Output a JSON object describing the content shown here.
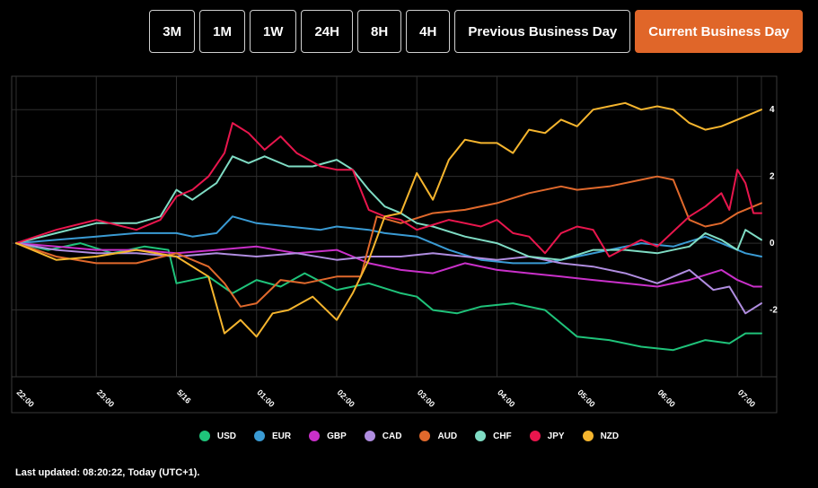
{
  "range_buttons": [
    {
      "label": "3M",
      "active": false
    },
    {
      "label": "1M",
      "active": false
    },
    {
      "label": "1W",
      "active": false
    },
    {
      "label": "24H",
      "active": false
    },
    {
      "label": "8H",
      "active": false
    },
    {
      "label": "4H",
      "active": false
    },
    {
      "label": "Previous Business Day",
      "active": false
    },
    {
      "label": "Current Business Day",
      "active": true
    }
  ],
  "colors": {
    "accent": "#e06629",
    "USD": "#1fc37a",
    "EUR": "#3a9bd4",
    "GBP": "#c930c9",
    "CAD": "#b08de0",
    "AUD": "#e0692c",
    "CHF": "#7fdcc4",
    "JPY": "#e8164d",
    "NZD": "#f5b52e"
  },
  "footer": {
    "last_updated": "Last updated: 08:20:22, Today (UTC+1)."
  },
  "chart_data": {
    "type": "line",
    "title": "",
    "xlabel": "",
    "ylabel": "",
    "ylim": [
      -4,
      5
    ],
    "yticks": [
      -2,
      0,
      2,
      4
    ],
    "ytick_labels": [
      "-2",
      "0",
      "2",
      "4"
    ],
    "xlim": [
      0,
      93
    ],
    "x_ticks": [
      {
        "x": 0,
        "label": "22:00"
      },
      {
        "x": 10,
        "label": "23:00"
      },
      {
        "x": 20,
        "label": "5/16"
      },
      {
        "x": 30,
        "label": "01:00"
      },
      {
        "x": 40,
        "label": "02:00"
      },
      {
        "x": 50,
        "label": "03:00"
      },
      {
        "x": 60,
        "label": "04:00"
      },
      {
        "x": 70,
        "label": "05:00"
      },
      {
        "x": 80,
        "label": "06:00"
      },
      {
        "x": 90,
        "label": "07:00"
      }
    ],
    "x_interval_minutes": 6,
    "legend": [
      "USD",
      "EUR",
      "GBP",
      "CAD",
      "AUD",
      "CHF",
      "JPY",
      "NZD"
    ],
    "series": [
      {
        "name": "USD",
        "points": [
          [
            0,
            0
          ],
          [
            4,
            -0.2
          ],
          [
            8,
            0
          ],
          [
            12,
            -0.3
          ],
          [
            16,
            -0.1
          ],
          [
            19,
            -0.2
          ],
          [
            20,
            -1.2
          ],
          [
            24,
            -1.0
          ],
          [
            27,
            -1.5
          ],
          [
            30,
            -1.1
          ],
          [
            33,
            -1.3
          ],
          [
            36,
            -0.9
          ],
          [
            40,
            -1.4
          ],
          [
            44,
            -1.2
          ],
          [
            48,
            -1.5
          ],
          [
            50,
            -1.6
          ],
          [
            52,
            -2.0
          ],
          [
            55,
            -2.1
          ],
          [
            58,
            -1.9
          ],
          [
            62,
            -1.8
          ],
          [
            66,
            -2.0
          ],
          [
            70,
            -2.8
          ],
          [
            74,
            -2.9
          ],
          [
            78,
            -3.1
          ],
          [
            82,
            -3.2
          ],
          [
            86,
            -2.9
          ],
          [
            89,
            -3.0
          ],
          [
            91,
            -2.7
          ],
          [
            93,
            -2.7
          ]
        ]
      },
      {
        "name": "EUR",
        "points": [
          [
            0,
            0
          ],
          [
            5,
            0.1
          ],
          [
            10,
            0.2
          ],
          [
            15,
            0.3
          ],
          [
            20,
            0.3
          ],
          [
            22,
            0.2
          ],
          [
            25,
            0.3
          ],
          [
            27,
            0.8
          ],
          [
            30,
            0.6
          ],
          [
            34,
            0.5
          ],
          [
            38,
            0.4
          ],
          [
            40,
            0.5
          ],
          [
            44,
            0.4
          ],
          [
            46,
            0.3
          ],
          [
            50,
            0.2
          ],
          [
            54,
            -0.2
          ],
          [
            58,
            -0.5
          ],
          [
            62,
            -0.6
          ],
          [
            66,
            -0.6
          ],
          [
            70,
            -0.4
          ],
          [
            74,
            -0.2
          ],
          [
            78,
            0
          ],
          [
            82,
            -0.1
          ],
          [
            86,
            0.2
          ],
          [
            89,
            -0.1
          ],
          [
            91,
            -0.3
          ],
          [
            93,
            -0.4
          ]
        ]
      },
      {
        "name": "GBP",
        "points": [
          [
            0,
            0
          ],
          [
            5,
            -0.1
          ],
          [
            10,
            -0.2
          ],
          [
            15,
            -0.2
          ],
          [
            20,
            -0.3
          ],
          [
            25,
            -0.2
          ],
          [
            30,
            -0.1
          ],
          [
            35,
            -0.3
          ],
          [
            40,
            -0.2
          ],
          [
            44,
            -0.6
          ],
          [
            48,
            -0.8
          ],
          [
            52,
            -0.9
          ],
          [
            56,
            -0.6
          ],
          [
            60,
            -0.8
          ],
          [
            64,
            -0.9
          ],
          [
            68,
            -1.0
          ],
          [
            72,
            -1.1
          ],
          [
            76,
            -1.2
          ],
          [
            80,
            -1.3
          ],
          [
            84,
            -1.1
          ],
          [
            88,
            -0.8
          ],
          [
            90,
            -1.1
          ],
          [
            92,
            -1.3
          ],
          [
            93,
            -1.3
          ]
        ]
      },
      {
        "name": "CAD",
        "points": [
          [
            0,
            0
          ],
          [
            5,
            -0.2
          ],
          [
            10,
            -0.3
          ],
          [
            15,
            -0.3
          ],
          [
            20,
            -0.4
          ],
          [
            25,
            -0.3
          ],
          [
            30,
            -0.4
          ],
          [
            35,
            -0.3
          ],
          [
            40,
            -0.5
          ],
          [
            44,
            -0.4
          ],
          [
            48,
            -0.4
          ],
          [
            52,
            -0.3
          ],
          [
            56,
            -0.4
          ],
          [
            60,
            -0.5
          ],
          [
            64,
            -0.4
          ],
          [
            68,
            -0.6
          ],
          [
            72,
            -0.7
          ],
          [
            76,
            -0.9
          ],
          [
            80,
            -1.2
          ],
          [
            84,
            -0.8
          ],
          [
            87,
            -1.4
          ],
          [
            89,
            -1.3
          ],
          [
            91,
            -2.1
          ],
          [
            93,
            -1.8
          ]
        ]
      },
      {
        "name": "AUD",
        "points": [
          [
            0,
            0
          ],
          [
            5,
            -0.4
          ],
          [
            10,
            -0.6
          ],
          [
            15,
            -0.6
          ],
          [
            20,
            -0.3
          ],
          [
            24,
            -0.7
          ],
          [
            26,
            -1.2
          ],
          [
            28,
            -1.9
          ],
          [
            30,
            -1.8
          ],
          [
            33,
            -1.1
          ],
          [
            36,
            -1.2
          ],
          [
            40,
            -1.0
          ],
          [
            43,
            -1.0
          ],
          [
            45,
            0.8
          ],
          [
            48,
            0.6
          ],
          [
            52,
            0.9
          ],
          [
            56,
            1.0
          ],
          [
            60,
            1.2
          ],
          [
            64,
            1.5
          ],
          [
            68,
            1.7
          ],
          [
            70,
            1.6
          ],
          [
            74,
            1.7
          ],
          [
            78,
            1.9
          ],
          [
            80,
            2.0
          ],
          [
            82,
            1.9
          ],
          [
            84,
            0.7
          ],
          [
            86,
            0.5
          ],
          [
            88,
            0.6
          ],
          [
            90,
            0.9
          ],
          [
            93,
            1.2
          ]
        ]
      },
      {
        "name": "CHF",
        "points": [
          [
            0,
            0
          ],
          [
            5,
            0.3
          ],
          [
            10,
            0.6
          ],
          [
            15,
            0.6
          ],
          [
            18,
            0.8
          ],
          [
            20,
            1.6
          ],
          [
            22,
            1.3
          ],
          [
            25,
            1.8
          ],
          [
            27,
            2.6
          ],
          [
            29,
            2.4
          ],
          [
            31,
            2.6
          ],
          [
            34,
            2.3
          ],
          [
            37,
            2.3
          ],
          [
            40,
            2.5
          ],
          [
            42,
            2.2
          ],
          [
            44,
            1.6
          ],
          [
            46,
            1.1
          ],
          [
            48,
            0.9
          ],
          [
            50,
            0.6
          ],
          [
            52,
            0.5
          ],
          [
            56,
            0.2
          ],
          [
            60,
            0
          ],
          [
            64,
            -0.4
          ],
          [
            68,
            -0.5
          ],
          [
            72,
            -0.2
          ],
          [
            76,
            -0.2
          ],
          [
            80,
            -0.3
          ],
          [
            84,
            -0.1
          ],
          [
            86,
            0.3
          ],
          [
            88,
            0.1
          ],
          [
            90,
            -0.2
          ],
          [
            91,
            0.4
          ],
          [
            93,
            0.1
          ]
        ]
      },
      {
        "name": "JPY",
        "points": [
          [
            0,
            0
          ],
          [
            5,
            0.4
          ],
          [
            10,
            0.7
          ],
          [
            15,
            0.4
          ],
          [
            18,
            0.7
          ],
          [
            20,
            1.4
          ],
          [
            22,
            1.6
          ],
          [
            24,
            2.0
          ],
          [
            26,
            2.7
          ],
          [
            27,
            3.6
          ],
          [
            29,
            3.3
          ],
          [
            31,
            2.8
          ],
          [
            33,
            3.2
          ],
          [
            35,
            2.7
          ],
          [
            38,
            2.3
          ],
          [
            40,
            2.2
          ],
          [
            42,
            2.2
          ],
          [
            44,
            1.0
          ],
          [
            46,
            0.8
          ],
          [
            48,
            0.7
          ],
          [
            50,
            0.4
          ],
          [
            54,
            0.7
          ],
          [
            58,
            0.5
          ],
          [
            60,
            0.7
          ],
          [
            62,
            0.3
          ],
          [
            64,
            0.2
          ],
          [
            66,
            -0.3
          ],
          [
            68,
            0.3
          ],
          [
            70,
            0.5
          ],
          [
            72,
            0.4
          ],
          [
            74,
            -0.4
          ],
          [
            78,
            0.1
          ],
          [
            80,
            -0.1
          ],
          [
            84,
            0.8
          ],
          [
            86,
            1.1
          ],
          [
            88,
            1.5
          ],
          [
            89,
            1.0
          ],
          [
            90,
            2.2
          ],
          [
            91,
            1.8
          ],
          [
            92,
            0.9
          ],
          [
            93,
            0.9
          ]
        ]
      },
      {
        "name": "NZD",
        "points": [
          [
            0,
            0
          ],
          [
            5,
            -0.5
          ],
          [
            10,
            -0.4
          ],
          [
            15,
            -0.2
          ],
          [
            20,
            -0.4
          ],
          [
            24,
            -1.0
          ],
          [
            26,
            -2.7
          ],
          [
            28,
            -2.3
          ],
          [
            30,
            -2.8
          ],
          [
            32,
            -2.1
          ],
          [
            34,
            -2.0
          ],
          [
            37,
            -1.6
          ],
          [
            40,
            -2.3
          ],
          [
            42,
            -1.5
          ],
          [
            44,
            -0.5
          ],
          [
            46,
            0.8
          ],
          [
            48,
            0.9
          ],
          [
            50,
            2.1
          ],
          [
            52,
            1.3
          ],
          [
            54,
            2.5
          ],
          [
            56,
            3.1
          ],
          [
            58,
            3.0
          ],
          [
            60,
            3.0
          ],
          [
            62,
            2.7
          ],
          [
            64,
            3.4
          ],
          [
            66,
            3.3
          ],
          [
            68,
            3.7
          ],
          [
            70,
            3.5
          ],
          [
            72,
            4.0
          ],
          [
            74,
            4.1
          ],
          [
            76,
            4.2
          ],
          [
            78,
            4.0
          ],
          [
            80,
            4.1
          ],
          [
            82,
            4.0
          ],
          [
            84,
            3.6
          ],
          [
            86,
            3.4
          ],
          [
            88,
            3.5
          ],
          [
            90,
            3.7
          ],
          [
            92,
            3.9
          ],
          [
            93,
            4.0
          ]
        ]
      }
    ]
  }
}
